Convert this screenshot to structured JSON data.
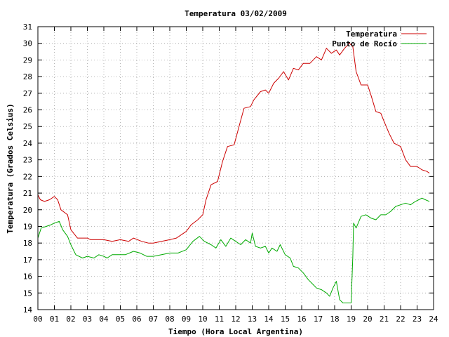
{
  "chart_data": {
    "type": "line",
    "title": "Temperatura 03/02/2009",
    "xlabel": "Tiempo (Hora Local Argentina)",
    "ylabel": "Temperatura (Grados Celsius)",
    "xlim": [
      0,
      24
    ],
    "ylim": [
      14,
      31
    ],
    "x_ticks": [
      "00",
      "01",
      "02",
      "03",
      "04",
      "05",
      "06",
      "07",
      "08",
      "09",
      "10",
      "11",
      "12",
      "13",
      "14",
      "15",
      "16",
      "17",
      "18",
      "19",
      "20",
      "21",
      "22",
      "23",
      "24"
    ],
    "y_ticks": [
      "14",
      "15",
      "16",
      "17",
      "18",
      "19",
      "20",
      "21",
      "22",
      "23",
      "24",
      "25",
      "26",
      "27",
      "28",
      "29",
      "30",
      "31"
    ],
    "grid": true,
    "legend_position": "top-right",
    "series": [
      {
        "name": "Temperatura",
        "color": "#cc0000",
        "points": [
          [
            0.0,
            20.9
          ],
          [
            0.15,
            20.6
          ],
          [
            0.4,
            20.5
          ],
          [
            0.7,
            20.6
          ],
          [
            1.0,
            20.8
          ],
          [
            1.2,
            20.6
          ],
          [
            1.4,
            20.0
          ],
          [
            1.8,
            19.7
          ],
          [
            2.0,
            18.8
          ],
          [
            2.4,
            18.3
          ],
          [
            3.0,
            18.3
          ],
          [
            3.2,
            18.2
          ],
          [
            4.0,
            18.2
          ],
          [
            4.5,
            18.1
          ],
          [
            5.0,
            18.2
          ],
          [
            5.5,
            18.1
          ],
          [
            5.8,
            18.3
          ],
          [
            6.3,
            18.1
          ],
          [
            6.7,
            18.0
          ],
          [
            7.0,
            18.0
          ],
          [
            7.5,
            18.1
          ],
          [
            8.0,
            18.2
          ],
          [
            8.4,
            18.3
          ],
          [
            9.0,
            18.7
          ],
          [
            9.3,
            19.1
          ],
          [
            9.7,
            19.4
          ],
          [
            10.0,
            19.7
          ],
          [
            10.2,
            20.6
          ],
          [
            10.5,
            21.5
          ],
          [
            10.9,
            21.7
          ],
          [
            11.2,
            22.9
          ],
          [
            11.5,
            23.8
          ],
          [
            11.9,
            23.9
          ],
          [
            12.2,
            25.0
          ],
          [
            12.5,
            26.1
          ],
          [
            12.9,
            26.2
          ],
          [
            13.1,
            26.6
          ],
          [
            13.5,
            27.1
          ],
          [
            13.8,
            27.2
          ],
          [
            14.0,
            27.0
          ],
          [
            14.3,
            27.6
          ],
          [
            14.6,
            27.9
          ],
          [
            14.9,
            28.3
          ],
          [
            15.2,
            27.8
          ],
          [
            15.5,
            28.5
          ],
          [
            15.8,
            28.4
          ],
          [
            16.1,
            28.8
          ],
          [
            16.5,
            28.8
          ],
          [
            16.9,
            29.2
          ],
          [
            17.2,
            29.0
          ],
          [
            17.5,
            29.7
          ],
          [
            17.8,
            29.4
          ],
          [
            18.1,
            29.6
          ],
          [
            18.3,
            29.3
          ],
          [
            18.6,
            29.7
          ],
          [
            18.9,
            30.0
          ],
          [
            19.1,
            29.8
          ],
          [
            19.3,
            28.3
          ],
          [
            19.6,
            27.5
          ],
          [
            20.0,
            27.5
          ],
          [
            20.2,
            26.9
          ],
          [
            20.5,
            25.9
          ],
          [
            20.8,
            25.8
          ],
          [
            21.0,
            25.3
          ],
          [
            21.3,
            24.6
          ],
          [
            21.6,
            24.0
          ],
          [
            22.0,
            23.8
          ],
          [
            22.3,
            23.0
          ],
          [
            22.6,
            22.6
          ],
          [
            23.0,
            22.6
          ],
          [
            23.3,
            22.4
          ],
          [
            23.6,
            22.3
          ],
          [
            23.75,
            22.2
          ]
        ]
      },
      {
        "name": "Punto de Rocío",
        "color": "#00aa00",
        "points": [
          [
            0.0,
            18.3
          ],
          [
            0.2,
            18.9
          ],
          [
            0.5,
            19.0
          ],
          [
            0.8,
            19.1
          ],
          [
            1.0,
            19.2
          ],
          [
            1.3,
            19.3
          ],
          [
            1.5,
            18.8
          ],
          [
            1.8,
            18.4
          ],
          [
            2.0,
            17.9
          ],
          [
            2.3,
            17.3
          ],
          [
            2.7,
            17.1
          ],
          [
            3.0,
            17.2
          ],
          [
            3.4,
            17.1
          ],
          [
            3.7,
            17.3
          ],
          [
            4.0,
            17.2
          ],
          [
            4.2,
            17.1
          ],
          [
            4.5,
            17.3
          ],
          [
            5.0,
            17.3
          ],
          [
            5.3,
            17.3
          ],
          [
            5.8,
            17.5
          ],
          [
            6.2,
            17.4
          ],
          [
            6.6,
            17.2
          ],
          [
            7.0,
            17.2
          ],
          [
            7.5,
            17.3
          ],
          [
            8.0,
            17.4
          ],
          [
            8.5,
            17.4
          ],
          [
            9.0,
            17.6
          ],
          [
            9.4,
            18.1
          ],
          [
            9.8,
            18.4
          ],
          [
            10.1,
            18.1
          ],
          [
            10.5,
            17.9
          ],
          [
            10.8,
            17.7
          ],
          [
            11.1,
            18.2
          ],
          [
            11.4,
            17.8
          ],
          [
            11.7,
            18.3
          ],
          [
            12.0,
            18.1
          ],
          [
            12.3,
            17.9
          ],
          [
            12.6,
            18.2
          ],
          [
            12.9,
            18.0
          ],
          [
            13.0,
            18.6
          ],
          [
            13.2,
            17.8
          ],
          [
            13.5,
            17.7
          ],
          [
            13.8,
            17.8
          ],
          [
            14.0,
            17.4
          ],
          [
            14.2,
            17.7
          ],
          [
            14.5,
            17.5
          ],
          [
            14.7,
            17.9
          ],
          [
            15.0,
            17.3
          ],
          [
            15.3,
            17.1
          ],
          [
            15.5,
            16.6
          ],
          [
            15.8,
            16.5
          ],
          [
            16.1,
            16.2
          ],
          [
            16.4,
            15.8
          ],
          [
            16.7,
            15.5
          ],
          [
            16.9,
            15.3
          ],
          [
            17.2,
            15.2
          ],
          [
            17.5,
            15.0
          ],
          [
            17.7,
            14.8
          ],
          [
            17.9,
            15.3
          ],
          [
            18.1,
            15.7
          ],
          [
            18.3,
            14.6
          ],
          [
            18.5,
            14.4
          ],
          [
            18.8,
            14.4
          ],
          [
            19.0,
            14.4
          ],
          [
            19.1,
            17.2
          ],
          [
            19.15,
            19.2
          ],
          [
            19.3,
            18.9
          ],
          [
            19.6,
            19.6
          ],
          [
            19.9,
            19.7
          ],
          [
            20.2,
            19.5
          ],
          [
            20.5,
            19.4
          ],
          [
            20.8,
            19.7
          ],
          [
            21.1,
            19.7
          ],
          [
            21.4,
            19.9
          ],
          [
            21.7,
            20.2
          ],
          [
            22.0,
            20.3
          ],
          [
            22.3,
            20.4
          ],
          [
            22.6,
            20.3
          ],
          [
            22.9,
            20.5
          ],
          [
            23.1,
            20.6
          ],
          [
            23.3,
            20.7
          ],
          [
            23.5,
            20.6
          ],
          [
            23.75,
            20.5
          ]
        ]
      }
    ]
  }
}
